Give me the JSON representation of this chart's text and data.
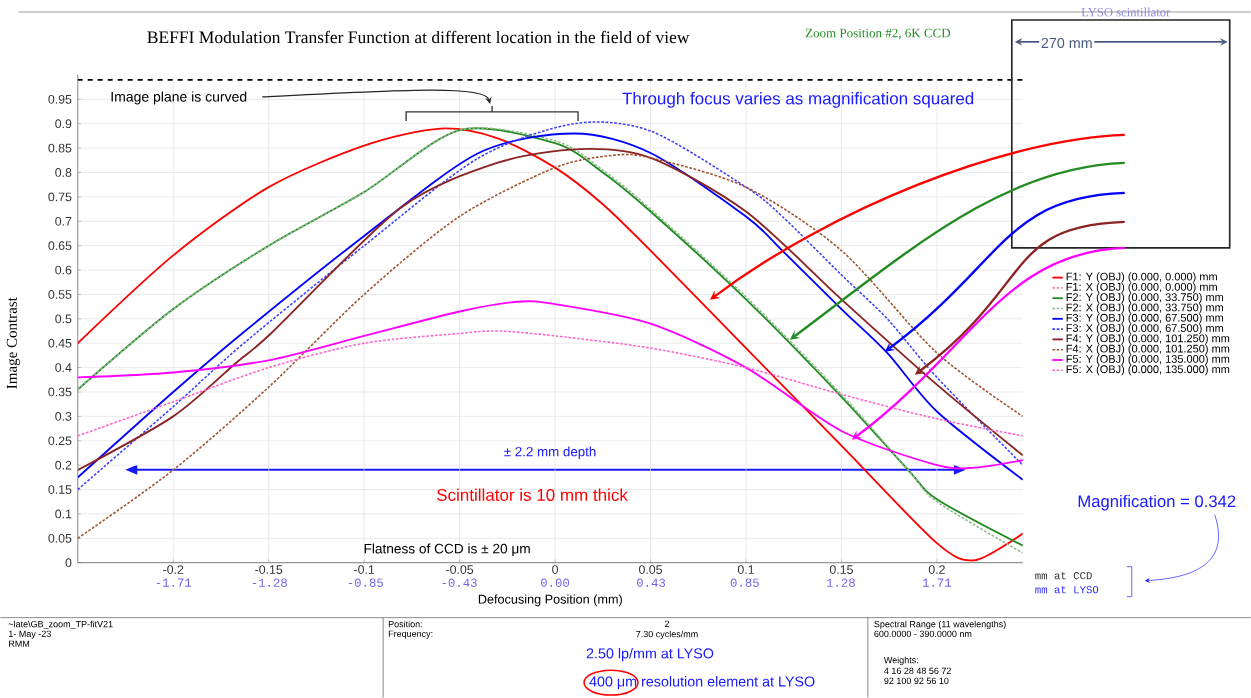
{
  "chart_data": {
    "type": "line",
    "title": "BEFFI Modulation Transfer Function at different location in the field of view",
    "subtitle": "Zoom Position #2, 6K CCD",
    "xlabel": "Defocusing Position (mm)",
    "ylabel": "Image Contrast",
    "xlim": [
      -0.25,
      0.245
    ],
    "ylim": [
      0,
      1
    ],
    "xticks": [
      -0.2,
      -0.15,
      -0.1,
      -0.05,
      0,
      0.05,
      0.1,
      0.15,
      0.2
    ],
    "yticks": [
      0,
      0.05,
      0.1,
      0.15,
      0.2,
      0.25,
      0.3,
      0.35,
      0.4,
      0.45,
      0.5,
      0.55,
      0.6,
      0.65,
      0.7,
      0.75,
      0.8,
      0.85,
      0.9,
      0.95
    ],
    "x2lim": [
      -2.1375,
      2.095
    ],
    "x2ticks": [
      -1.71,
      -1.28,
      -0.85,
      -0.43,
      {
        "value": 0,
        "label": "0.00"
      },
      0.43,
      0.85,
      1.28,
      1.71
    ],
    "grid": true,
    "legend": "right",
    "series": [
      {
        "color": "#000000",
        "line_style": "dashed",
        "x": [
          -0.25,
          0.245
        ],
        "values": [
          0.99,
          0.99
        ]
      },
      {
        "name": "F1: Y (OBJ) (0.000, 0.000) mm",
        "color": "#ff0000",
        "line_style": "solid",
        "x": [
          -0.25,
          -0.2,
          -0.15,
          -0.1,
          -0.06,
          -0.03,
          0,
          0.025,
          0.05,
          0.1,
          0.15,
          0.2,
          0.22,
          0.245
        ],
        "values": [
          0.45,
          0.63,
          0.77,
          0.855,
          0.89,
          0.87,
          0.81,
          0.735,
          0.64,
          0.44,
          0.24,
          0.04,
          0.005,
          0.06
        ]
      },
      {
        "name": "F1: X (OBJ) (0.000, 0.000) mm",
        "color": "#ff80c0",
        "line_style": "dotted"
      },
      {
        "name": "F2: Y (OBJ) (0.000, 33.750) mm",
        "color": "#228b22",
        "line_style": "solid",
        "x": [
          -0.25,
          -0.2,
          -0.15,
          -0.1,
          -0.05,
          0,
          0.025,
          0.05,
          0.1,
          0.15,
          0.185,
          0.2,
          0.245
        ],
        "values": [
          0.355,
          0.52,
          0.65,
          0.76,
          0.887,
          0.86,
          0.8,
          0.72,
          0.54,
          0.34,
          0.19,
          0.13,
          0.035
        ]
      },
      {
        "name": "F2: X (OBJ) (0.000, 33.750) mm",
        "color": "#8fbc8f",
        "line_style": "dotted",
        "x": [
          -0.25,
          -0.2,
          -0.15,
          -0.1,
          -0.05,
          0,
          0.025,
          0.05,
          0.1,
          0.15,
          0.185,
          0.2,
          0.245
        ],
        "values": [
          0.355,
          0.52,
          0.65,
          0.76,
          0.887,
          0.865,
          0.805,
          0.725,
          0.545,
          0.345,
          0.19,
          0.125,
          0.02
        ]
      },
      {
        "name": "F3: Y (OBJ) (0.000, 67.500) mm",
        "color": "#0000ff",
        "line_style": "solid",
        "x": [
          -0.25,
          -0.2,
          -0.163,
          -0.1,
          -0.04,
          0.01,
          0.05,
          0.1,
          0.119,
          0.15,
          0.174,
          0.2,
          0.245
        ],
        "values": [
          0.175,
          0.35,
          0.473,
          0.67,
          0.84,
          0.88,
          0.84,
          0.71,
          0.64,
          0.52,
          0.43,
          0.31,
          0.17
        ]
      },
      {
        "name": "F3: X (OBJ) (0.000, 67.500) mm",
        "color": "#4040ff",
        "line_style": "dotted",
        "x": [
          -0.25,
          -0.2,
          -0.163,
          -0.1,
          -0.04,
          0.01,
          0.05,
          0.1,
          0.119,
          0.15,
          0.174,
          0.2,
          0.245
        ],
        "values": [
          0.15,
          0.32,
          0.45,
          0.65,
          0.83,
          0.9,
          0.885,
          0.77,
          0.71,
          0.59,
          0.5,
          0.38,
          0.2
        ]
      },
      {
        "name": "F4: Y (OBJ) (0.000, 101.250) mm",
        "color": "#8b2323",
        "line_style": "solid",
        "x": [
          -0.25,
          -0.2,
          -0.167,
          -0.148,
          -0.081,
          -0.03,
          0.013,
          0.05,
          0.1,
          0.15,
          0.2,
          0.245
        ],
        "values": [
          0.19,
          0.3,
          0.41,
          0.473,
          0.727,
          0.82,
          0.848,
          0.83,
          0.72,
          0.54,
          0.365,
          0.22
        ]
      },
      {
        "name": "F4: X (OBJ) (0.000, 101.250) mm",
        "color": "#a0522d",
        "line_style": "dotted",
        "x": [
          -0.25,
          -0.2,
          -0.15,
          -0.1,
          -0.05,
          0,
          0.03,
          0.05,
          0.1,
          0.15,
          0.2,
          0.245
        ],
        "values": [
          0.05,
          0.19,
          0.36,
          0.55,
          0.71,
          0.81,
          0.835,
          0.83,
          0.77,
          0.64,
          0.43,
          0.3
        ]
      },
      {
        "name": "F5: Y (OBJ) (0.000, 135.000) mm",
        "color": "#ff00ff",
        "line_style": "solid",
        "x": [
          -0.25,
          -0.2,
          -0.15,
          -0.1,
          -0.05,
          -0.02,
          0,
          0.05,
          0.1,
          0.15,
          0.2,
          0.22,
          0.245
        ],
        "values": [
          0.38,
          0.39,
          0.415,
          0.465,
          0.515,
          0.535,
          0.53,
          0.49,
          0.4,
          0.27,
          0.2,
          0.195,
          0.21
        ]
      },
      {
        "name": "F5: X (OBJ) (0.000, 135.000) mm",
        "color": "#ff66cc",
        "line_style": "dotted",
        "x": [
          -0.25,
          -0.2,
          -0.15,
          -0.1,
          -0.05,
          -0.03,
          0,
          0.05,
          0.1,
          0.15,
          0.2,
          0.245
        ],
        "values": [
          0.26,
          0.33,
          0.4,
          0.45,
          0.47,
          0.475,
          0.465,
          0.44,
          0.4,
          0.345,
          0.295,
          0.26
        ]
      }
    ],
    "annotations": [
      "Image plane is curved",
      "Through focus varies as magnification squared",
      "± 2.2 mm depth",
      "Scintillator is 10 mm thick",
      "Flatness of CCD is ± 20 μm",
      "Magnification = 0.342",
      "mm at CCD",
      "mm at LYSO",
      "LYSO scintillator",
      "270 mm",
      "~late\\GB_zoom_TP-fitV21",
      "1- May -23",
      "RMM",
      "Position:",
      "Frequency:",
      "2",
      "7.30 cycles/mm",
      "2.50 lp/mm at LYSO",
      "400 μm resolution element at LYSO",
      "Spectral Range (11 wavelengths)",
      "600.0000 - 390.0000 nm",
      "Weights:",
      "4 16 28 48 56 72",
      "92 100 92 56 10"
    ]
  }
}
